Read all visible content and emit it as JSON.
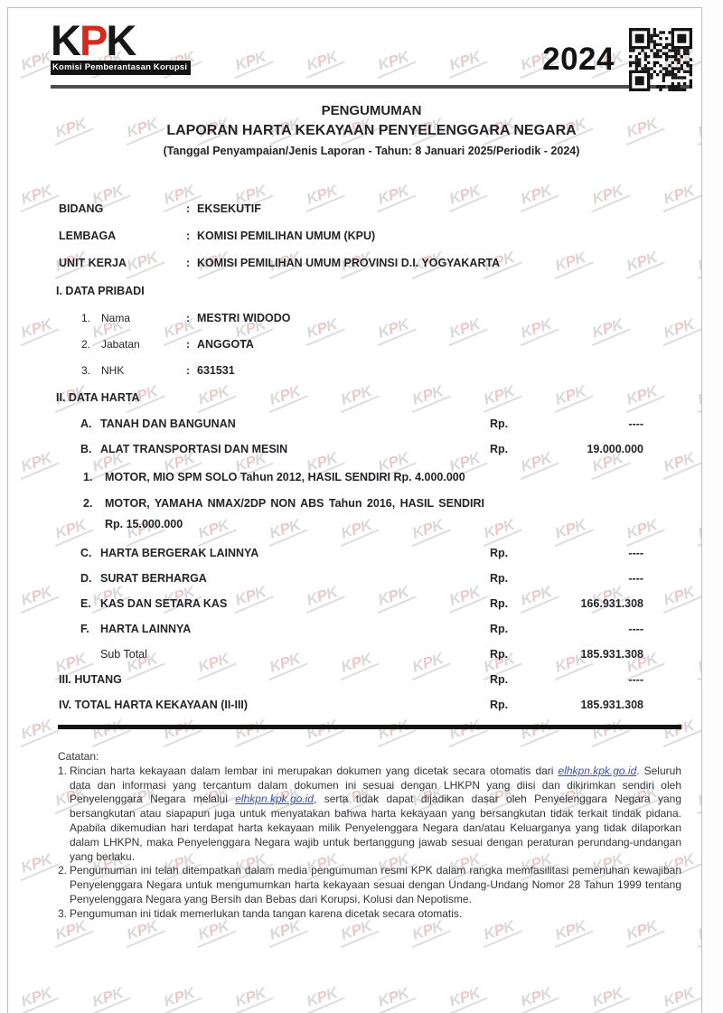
{
  "header": {
    "logo_k1": "K",
    "logo_p": "P",
    "logo_k2": "K",
    "logo_subtitle": "Komisi Pemberantasan Korupsi",
    "year": "2024",
    "qr_icon": "qr-code",
    "accent_red": "#d42a1e"
  },
  "title": {
    "line1": "PENGUMUMAN",
    "line2": "LAPORAN HARTA KEKAYAAN PENYELENGGARA NEGARA",
    "line3": "(Tanggal Penyampaian/Jenis Laporan - Tahun: 8 Januari 2025/Periodik - 2024)"
  },
  "info_fields": [
    {
      "label": "BIDANG",
      "colon": ":",
      "value": "EKSEKUTIF"
    },
    {
      "label": "LEMBAGA",
      "colon": ":",
      "value": "KOMISI PEMILIHAN UMUM (KPU)"
    },
    {
      "label": "UNIT KERJA",
      "colon": ":",
      "value": "KOMISI PEMILIHAN UMUM PROVINSI D.I. YOGYAKARTA"
    }
  ],
  "section1": {
    "heading": "I. DATA PRIBADI",
    "rows": [
      {
        "no": "1.",
        "label": "Nama",
        "colon": ":",
        "value": "MESTRI WIDODO"
      },
      {
        "no": "2.",
        "label": "Jabatan",
        "colon": ":",
        "value": "ANGGOTA"
      },
      {
        "no": "3.",
        "label": "NHK",
        "colon": ":",
        "value": "631531"
      }
    ]
  },
  "section2": {
    "heading": "II. DATA HARTA",
    "rows": [
      {
        "code": "A.",
        "label": "TANAH DAN BANGUNAN",
        "currency": "Rp.",
        "amount": "----"
      },
      {
        "code": "B.",
        "label": "ALAT TRANSPORTASI DAN MESIN",
        "currency": "Rp.",
        "amount": "19.000.000"
      },
      {
        "code": "C.",
        "label": "HARTA BERGERAK LAINNYA",
        "currency": "Rp.",
        "amount": "----"
      },
      {
        "code": "D.",
        "label": "SURAT BERHARGA",
        "currency": "Rp.",
        "amount": "----"
      },
      {
        "code": "E.",
        "label": "KAS DAN SETARA KAS",
        "currency": "Rp.",
        "amount": "166.931.308"
      },
      {
        "code": "F.",
        "label": "HARTA LAINNYA",
        "currency": "Rp.",
        "amount": "----"
      }
    ],
    "vehicle_items": [
      {
        "no": "1.",
        "text": "MOTOR, MIO SPM SOLO Tahun 2012, HASIL SENDIRI Rp. 4.000.000"
      },
      {
        "no": "2.",
        "text": "MOTOR, YAMAHA NMAX/2DP NON ABS Tahun 2016, HASIL SENDIRI Rp. 15.000.000"
      }
    ],
    "subtotal": {
      "label": "Sub Total",
      "currency": "Rp.",
      "amount": "185.931.308"
    }
  },
  "totals": [
    {
      "label": "III. HUTANG",
      "currency": "Rp.",
      "amount": "----"
    },
    {
      "label": "IV. TOTAL HARTA KEKAYAAN (II-III)",
      "currency": "Rp.",
      "amount": "185.931.308"
    }
  ],
  "notes": {
    "heading": "Catatan:",
    "items": [
      {
        "no": "1.",
        "segments": [
          {
            "text": "Rincian harta kekayaan dalam lembar ini merupakan dokumen yang dicetak secara otomatis dari "
          },
          {
            "text": "elhkpn.kpk.go.id",
            "link": true
          },
          {
            "text": ". Seluruh data dan informasi yang tercantum dalam dokumen ini sesuai dengan LHKPN yang diisi dan dikirimkan sendiri oleh Penyelenggara Negara melalui "
          },
          {
            "text": "elhkpn.kpk.go.id",
            "link": true
          },
          {
            "text": ", serta tidak dapat dijadikan dasar oleh Penyelenggara Negara yang bersangkutan atau siapapun juga untuk menyatakan bahwa harta kekayaan yang bersangkutan tidak terkait tindak pidana. Apabila dikemudian hari terdapat harta kekayaan milik Penyelenggara Negara dan/atau Keluarganya yang tidak dilaporkan dalam LHKPN, maka Penyelenggara Negara wajib untuk bertanggung jawab sesuai dengan peraturan perundang-undangan yang berlaku."
          }
        ]
      },
      {
        "no": "2.",
        "segments": [
          {
            "text": "Pengumuman ini telah ditempatkan dalam media pengumuman resmi KPK dalam rangka memfasilitasi pemenuhan kewajiban Penyelenggara Negara untuk mengumumkan harta kekayaan sesuai dengan Undang-Undang Nomor 28 Tahun 1999 tentang Penyelenggara Negara yang Bersih dan Bebas dari Korupsi, Kolusi dan Nepotisme."
          }
        ]
      },
      {
        "no": "3.",
        "segments": [
          {
            "text": "Pengumuman ini tidak memerlukan tanda tangan karena dicetak secara otomatis."
          }
        ]
      }
    ]
  }
}
